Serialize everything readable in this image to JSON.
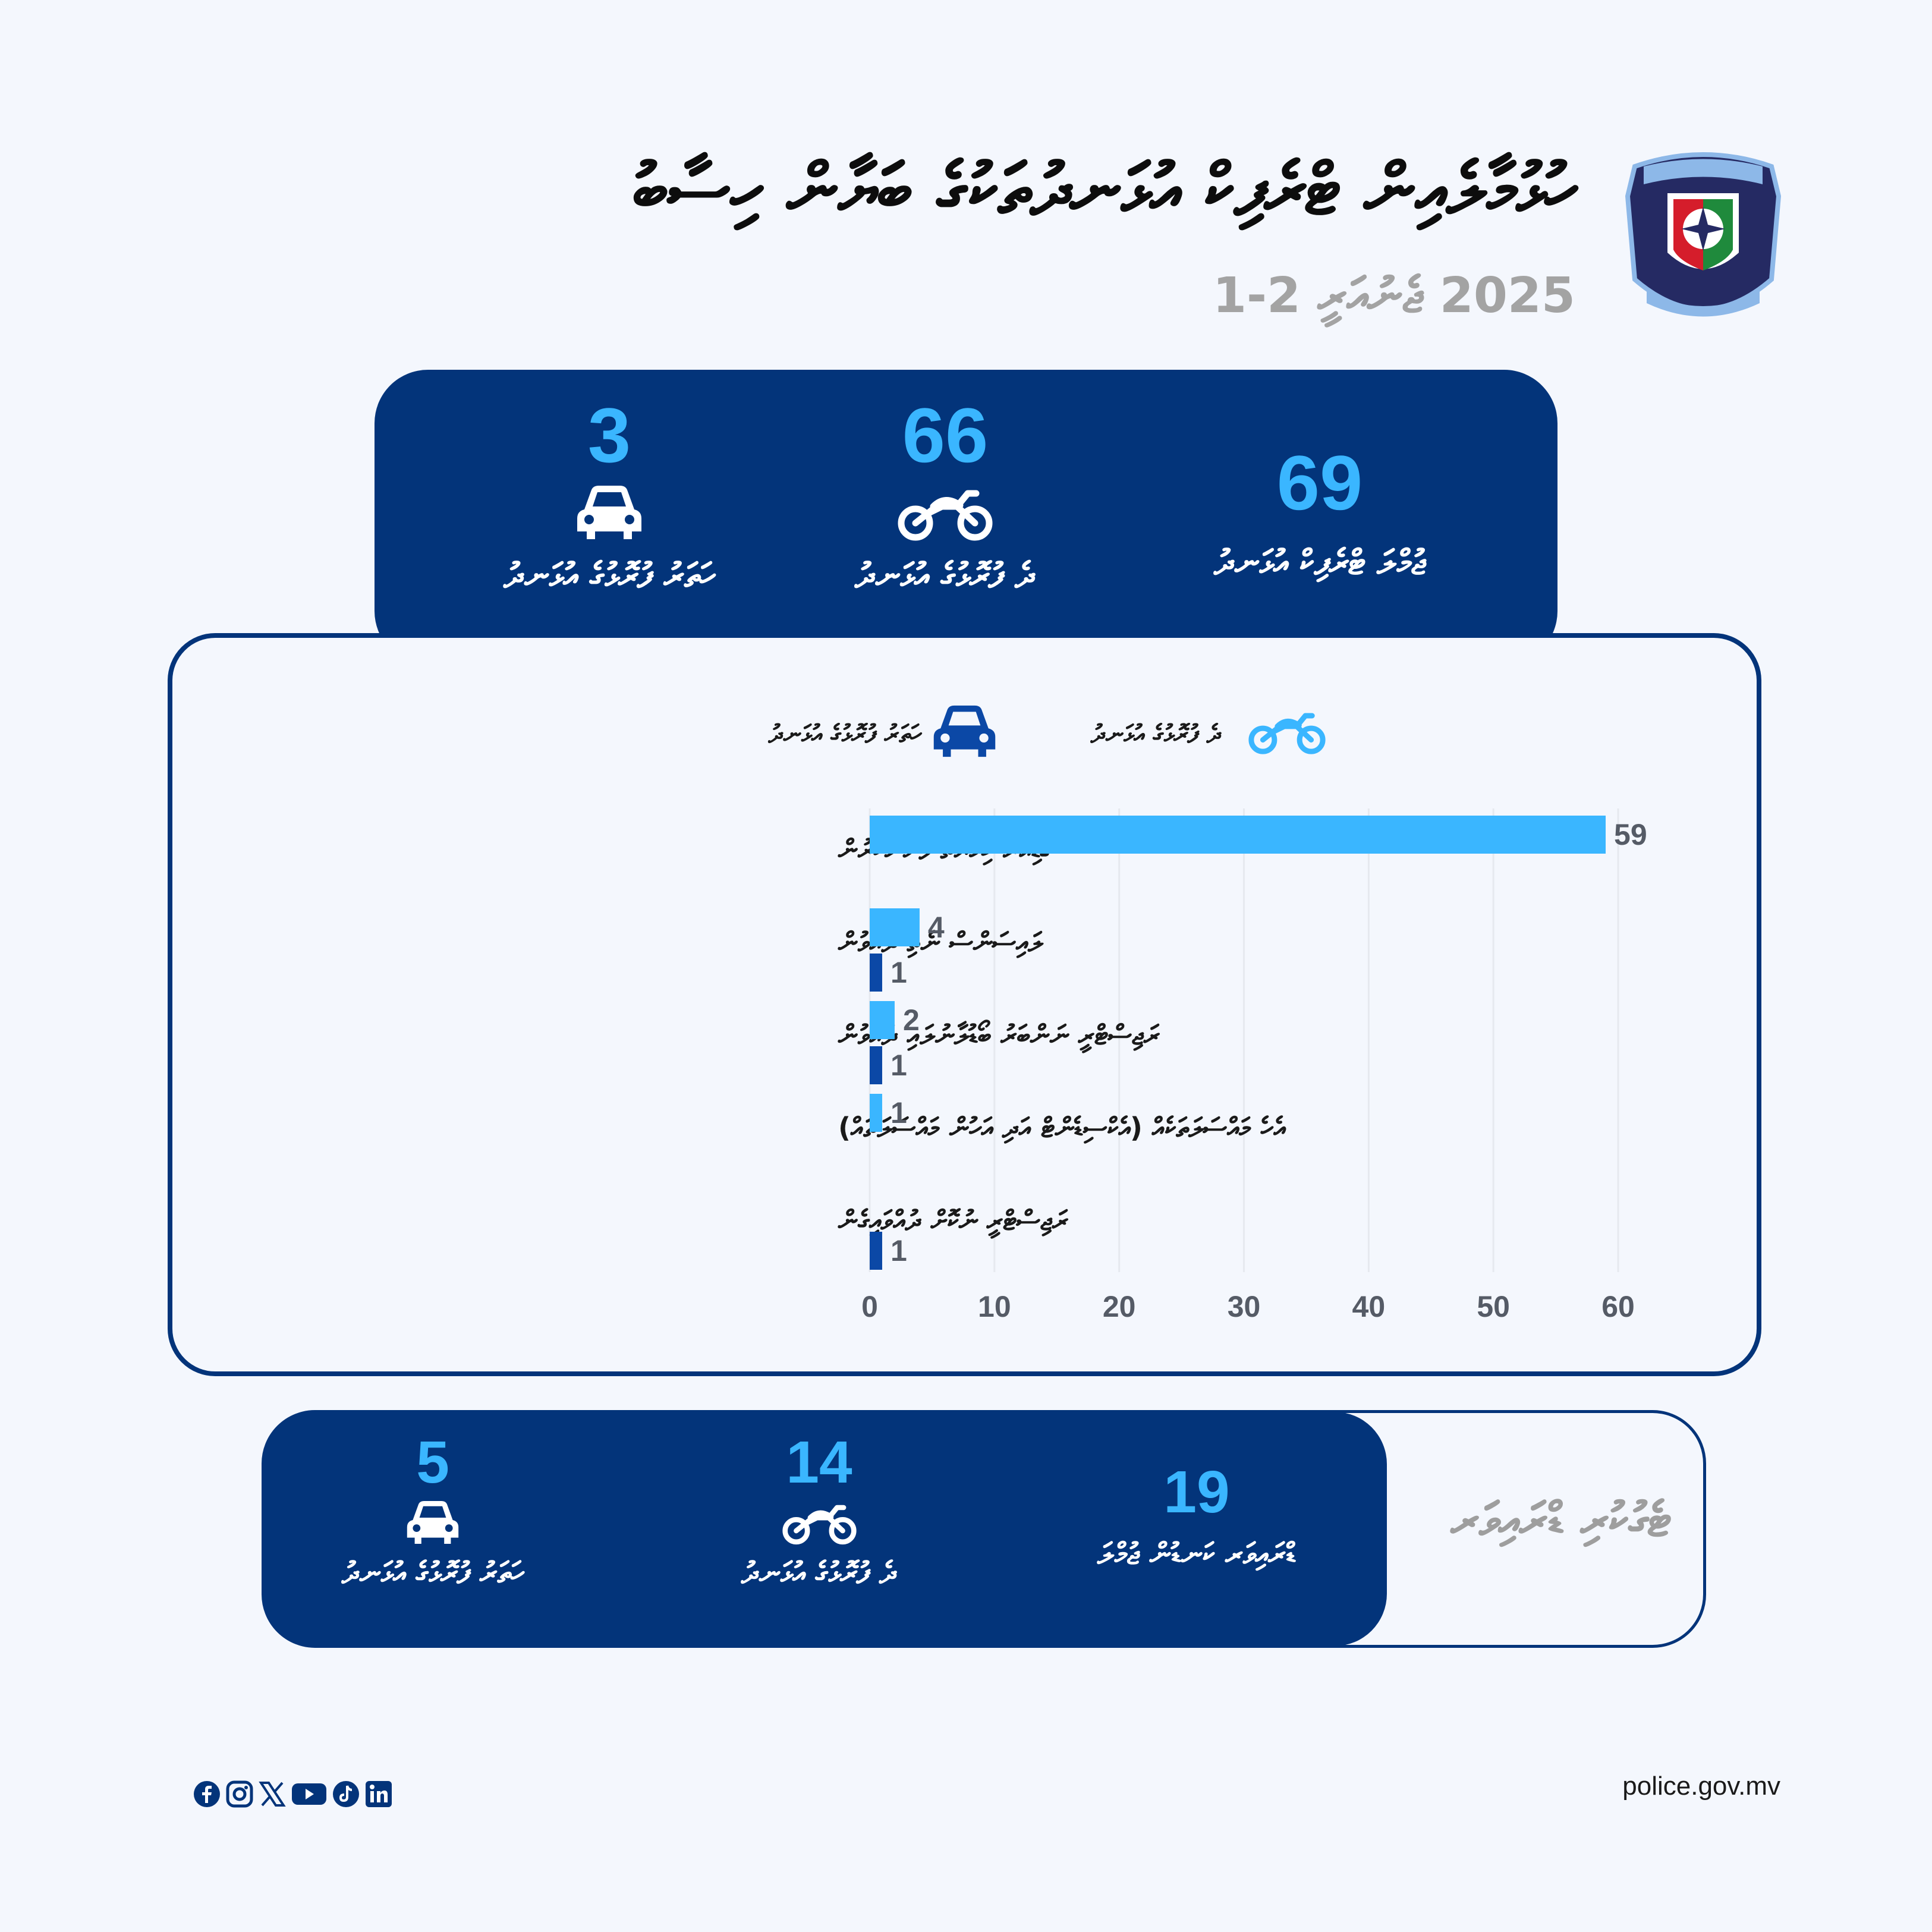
{
  "header": {
    "title": "ހުޅުމާލެއިން ޓްރެފިކް އުޅަނދުތަކުގެ ބަޔާން ހިސާބު",
    "subtitle": "2025 ޖެނުއަރީ 2-1"
  },
  "summary_top": {
    "total": {
      "value": "69",
      "label": "ޖުމްލަ ޓްރެފިކް އުޅަނދު"
    },
    "motorcycle": {
      "value": "66",
      "label": "ދެ ފުރޮޅުގެ އުޅަނދު",
      "icon": "motorcycle-icon"
    },
    "car": {
      "value": "3",
      "label": "ހަތަރު ފުރޮޅުގެ އުޅަނދު",
      "icon": "car-icon"
    }
  },
  "legend": {
    "motorcycle": "ދެ ފުރޮޅުގެ އުޅަނދު",
    "car": "ހަތަރު ފުރޮޅުގެ އުޅަނދު"
  },
  "chart_data": {
    "type": "bar",
    "orientation": "horizontal",
    "categories": [
      "ގާޑިއަރު ހިމާޔަތް ފުށުނުކުރުން",
      "ލައިސަންސް ނެތި ދުއްވުން",
      "ރަޖިސްޓްރީ ނަންބަރު ބޯޑުލާނުލައި ދުއްވުން",
      "އެހެ މައްސަލަތަކެއް (އެކްސިޑެންޓް އަދި އަހުން މައްސަލަތައް)",
      "ރަޖިސްޓްރީ ނުކޮށް ދުއްވައިގެން"
    ],
    "series": [
      {
        "name": "ދެ ފުރޮޅުގެ އުޅަނދު",
        "values": [
          59,
          4,
          2,
          1,
          null
        ],
        "color": "#3ab6ff"
      },
      {
        "name": "ހަތަރު ފުރޮޅުގެ އުޅަނދު",
        "values": [
          null,
          1,
          1,
          null,
          1
        ],
        "color": "#0b48a6"
      }
    ],
    "xlim": [
      0,
      60
    ],
    "xticks": [
      0,
      10,
      20,
      30,
      40,
      50,
      60
    ],
    "grid": true,
    "legend_position": "top"
  },
  "summary_bottom": {
    "label": "ޓެގުކުރި ޑްރައިވަރ",
    "total": {
      "value": "19",
      "label": "ޑްރައިވަރ ކަނޑުން ޖުމްލަ"
    },
    "motorcycle": {
      "value": "14",
      "label": "ދެ ފުރޮޅުގެ އުޅަނދު"
    },
    "car": {
      "value": "5",
      "label": "ހަތަރު ފުރޮޅުގެ އުޅަނދު"
    }
  },
  "footer": {
    "url": "police.gov.mv",
    "socials": [
      "facebook-icon",
      "instagram-icon",
      "x-icon",
      "youtube-icon",
      "tiktok-icon",
      "linkedin-icon"
    ]
  }
}
